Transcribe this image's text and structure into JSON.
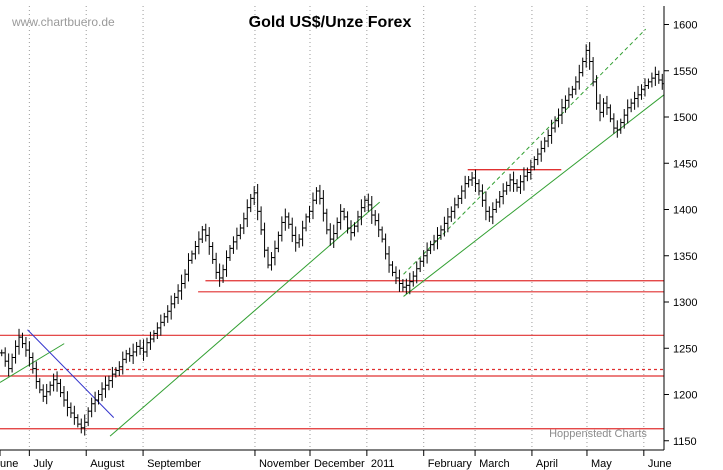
{
  "chart_data": {
    "type": "bar",
    "subtype": "ohlc",
    "title": "Gold US$/Unze Forex",
    "watermark": "www.chartbuero.de",
    "credit": "Hoppenstedt Charts",
    "xlabel": "",
    "ylabel": "",
    "ylim": [
      1140,
      1620
    ],
    "y_ticks": [
      1150,
      1200,
      1250,
      1300,
      1350,
      1400,
      1450,
      1500,
      1550,
      1600
    ],
    "y_axis_side": "right",
    "grid": "vertical dotted at month boundaries",
    "month_labels": [
      "une",
      "July",
      "August",
      "September",
      "November",
      "December",
      "2011",
      "February",
      "March",
      "April",
      "May",
      "June"
    ],
    "month_days": [
      0,
      16,
      47,
      78,
      139,
      169,
      200,
      231,
      259,
      290,
      320,
      351
    ],
    "total_days": 362,
    "series": [
      {
        "values": [
          1245,
          1236,
          1228,
          1240,
          1252,
          1262,
          1255,
          1248,
          1240,
          1228,
          1214,
          1205,
          1198,
          1203,
          1210,
          1216,
          1212,
          1202,
          1194,
          1186,
          1180,
          1175,
          1168,
          1164,
          1170,
          1182,
          1190,
          1194,
          1200,
          1206,
          1210,
          1215,
          1222,
          1226,
          1230,
          1238,
          1244,
          1242,
          1246,
          1252,
          1250,
          1246,
          1256,
          1260,
          1266,
          1272,
          1278,
          1284,
          1290,
          1298,
          1305,
          1312,
          1320,
          1330,
          1345,
          1352,
          1360,
          1368,
          1378,
          1372,
          1360,
          1346,
          1332,
          1326,
          1335,
          1348,
          1358,
          1365,
          1372,
          1380,
          1390,
          1402,
          1412,
          1418,
          1398,
          1378,
          1356,
          1340,
          1348,
          1358,
          1372,
          1386,
          1392,
          1384,
          1372,
          1364,
          1368,
          1380,
          1392,
          1398,
          1410,
          1420,
          1412,
          1396,
          1378,
          1368,
          1374,
          1386,
          1398,
          1392,
          1380,
          1375,
          1382,
          1392,
          1402,
          1410,
          1405,
          1394,
          1388,
          1378,
          1368,
          1352,
          1340,
          1332,
          1326,
          1320,
          1316,
          1318,
          1322,
          1328,
          1336,
          1344,
          1350,
          1356,
          1362,
          1366,
          1372,
          1378,
          1385,
          1392,
          1398,
          1405,
          1412,
          1420,
          1428,
          1432,
          1434,
          1428,
          1420,
          1410,
          1398,
          1392,
          1400,
          1408,
          1414,
          1420,
          1426,
          1432,
          1428,
          1424,
          1430,
          1436,
          1440,
          1446,
          1454,
          1460,
          1466,
          1474,
          1480,
          1488,
          1496,
          1502,
          1510,
          1518,
          1524,
          1530,
          1538,
          1548,
          1560,
          1572,
          1560,
          1538,
          1515,
          1505,
          1515,
          1510,
          1498,
          1488,
          1486,
          1494,
          1502,
          1510,
          1515,
          1520,
          1524,
          1530,
          1534,
          1538,
          1542,
          1546,
          1540,
          1536
        ]
      }
    ],
    "support_resistance_lines": [
      1163,
      1220,
      1227,
      1264,
      1311,
      1323
    ],
    "short_resistance_line": 1443,
    "trend_lines": [
      {
        "color": "#33a033",
        "style": "solid",
        "from": [
          60,
          1155
        ],
        "to": [
          207,
          1408
        ]
      },
      {
        "color": "#33a033",
        "style": "solid",
        "from": [
          0,
          1213
        ],
        "to": [
          35,
          1255
        ]
      },
      {
        "color": "#33a033",
        "style": "solid",
        "from": [
          220,
          1306
        ],
        "to": [
          362,
          1524
        ]
      },
      {
        "color": "#33a033",
        "style": "dashed",
        "from": [
          220,
          1330
        ],
        "to": [
          352,
          1595
        ]
      },
      {
        "color": "#3333cc",
        "style": "solid",
        "from": [
          15,
          1270
        ],
        "to": [
          62,
          1175
        ]
      }
    ],
    "colors": {
      "bars": "#000000",
      "support_resistance": "#e03030",
      "trend_green": "#33a033",
      "trend_blue": "#3333cc",
      "grid": "#9a9a9a"
    }
  }
}
